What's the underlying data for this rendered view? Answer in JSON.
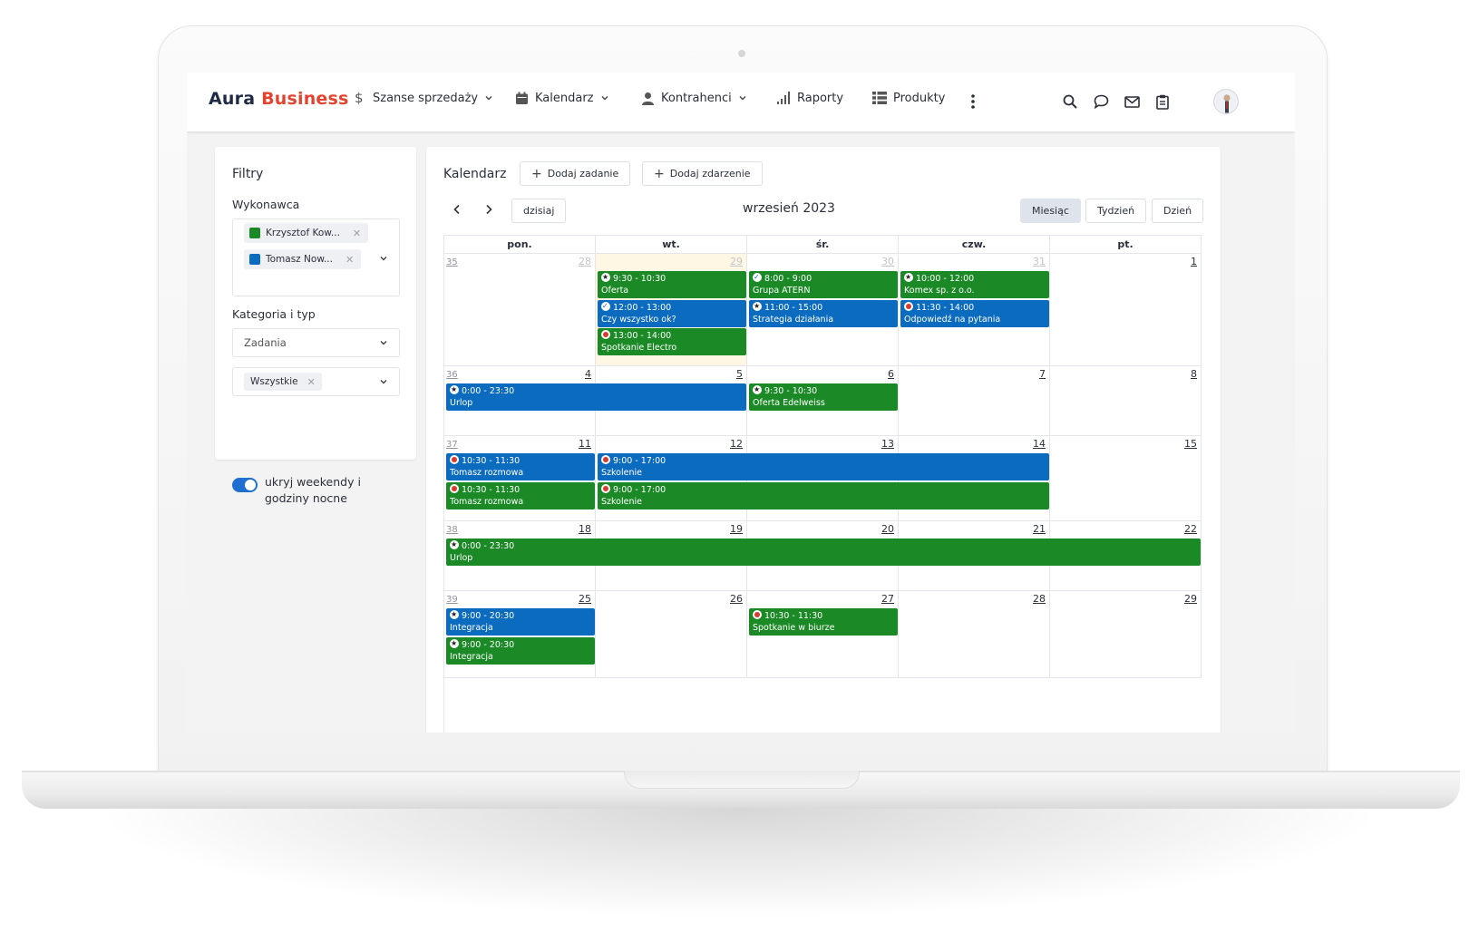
{
  "brand": {
    "part1": "Aura",
    "part2": "Business"
  },
  "nav": [
    {
      "label": "Szanse sprzedaży",
      "icon": "dollar-icon",
      "dropdown": true
    },
    {
      "label": "Kalendarz",
      "icon": "calendar-icon",
      "dropdown": true
    },
    {
      "label": "Kontrahenci",
      "icon": "user-icon",
      "dropdown": true
    },
    {
      "label": "Raporty",
      "icon": "bar-chart-icon",
      "dropdown": false
    },
    {
      "label": "Produkty",
      "icon": "grid-list-icon",
      "dropdown": false
    }
  ],
  "header_icons": [
    "more-vertical-icon",
    "search-icon",
    "chat-icon",
    "mail-icon",
    "clipboard-icon",
    "avatar"
  ],
  "filters": {
    "title": "Filtry",
    "assignee_label": "Wykonawca",
    "assignees": [
      {
        "name": "Krzysztof Kow...",
        "color": "#1b8a26"
      },
      {
        "name": "Tomasz Now...",
        "color": "#0b6bbf"
      }
    ],
    "category_label": "Kategoria i typ",
    "category_value": "Zadania",
    "type_chip": "Wszystkie",
    "toggle_label": "ukryj weekendy i godziny nocne",
    "toggle_on": true
  },
  "calendar": {
    "title": "Kalendarz",
    "add_task": "Dodaj zadanie",
    "add_event": "Dodaj zdarzenie",
    "today": "dzisiaj",
    "month": "wrzesień 2023",
    "views": [
      "Miesiąc",
      "Tydzień",
      "Dzień"
    ],
    "active_view": "Miesiąc",
    "weekdays": [
      "pon.",
      "wt.",
      "śr.",
      "czw.",
      "pt."
    ],
    "weeks": [
      {
        "week": "35",
        "days": [
          "28",
          "29",
          "30",
          "31",
          "1"
        ],
        "muted": [
          true,
          true,
          true,
          true,
          false
        ],
        "today_index": 1
      },
      {
        "week": "36",
        "days": [
          "4",
          "5",
          "6",
          "7",
          "8"
        ],
        "muted": [
          false,
          false,
          false,
          false,
          false
        ]
      },
      {
        "week": "37",
        "days": [
          "11",
          "12",
          "13",
          "14",
          "15"
        ],
        "muted": [
          false,
          false,
          false,
          false,
          false
        ]
      },
      {
        "week": "38",
        "days": [
          "18",
          "19",
          "20",
          "21",
          "22"
        ],
        "muted": [
          false,
          false,
          false,
          false,
          false
        ]
      },
      {
        "week": "39",
        "days": [
          "25",
          "26",
          "27",
          "28",
          "29"
        ],
        "muted": [
          false,
          false,
          false,
          false,
          false
        ]
      }
    ],
    "events": [
      {
        "week": 0,
        "col": 1,
        "span": 1,
        "slot": 0,
        "color": "green",
        "icon": "star",
        "time": "9:30 - 10:30",
        "title": "Oferta"
      },
      {
        "week": 0,
        "col": 1,
        "span": 1,
        "slot": 1,
        "color": "blue",
        "icon": "check",
        "time": "12:00 - 13:00",
        "title": "Czy wszystko ok?"
      },
      {
        "week": 0,
        "col": 1,
        "span": 1,
        "slot": 2,
        "color": "green",
        "icon": "red",
        "time": "13:00 - 14:00",
        "title": "Spotkanie Electro"
      },
      {
        "week": 0,
        "col": 2,
        "span": 1,
        "slot": 0,
        "color": "green",
        "icon": "check",
        "time": "8:00 - 9:00",
        "title": "Grupa ATERN"
      },
      {
        "week": 0,
        "col": 2,
        "span": 1,
        "slot": 1,
        "color": "blue",
        "icon": "star",
        "time": "11:00 - 15:00",
        "title": "Strategia działania"
      },
      {
        "week": 0,
        "col": 3,
        "span": 1,
        "slot": 0,
        "color": "green",
        "icon": "star",
        "time": "10:00 - 12:00",
        "title": "Komex sp. z o.o."
      },
      {
        "week": 0,
        "col": 3,
        "span": 1,
        "slot": 1,
        "color": "blue",
        "icon": "red",
        "time": "11:30 - 14:00",
        "title": "Odpowiedź na pytania"
      },
      {
        "week": 1,
        "col": 0,
        "span": 2,
        "slot": 0,
        "color": "blue",
        "icon": "star",
        "time": "0:00 - 23:30",
        "title": "Urlop"
      },
      {
        "week": 1,
        "col": 2,
        "span": 1,
        "slot": 0,
        "color": "green",
        "icon": "star",
        "time": "9:30 - 10:30",
        "title": "Oferta Edelweiss"
      },
      {
        "week": 2,
        "col": 0,
        "span": 1,
        "slot": 0,
        "color": "blue",
        "icon": "red",
        "time": "10:30 - 11:30",
        "title": "Tomasz rozmowa"
      },
      {
        "week": 2,
        "col": 0,
        "span": 1,
        "slot": 1,
        "color": "green",
        "icon": "red",
        "time": "10:30 - 11:30",
        "title": "Tomasz rozmowa"
      },
      {
        "week": 2,
        "col": 1,
        "span": 3,
        "slot": 0,
        "color": "blue",
        "icon": "red",
        "time": "9:00 - 17:00",
        "title": "Szkolenie"
      },
      {
        "week": 2,
        "col": 1,
        "span": 3,
        "slot": 1,
        "color": "green",
        "icon": "red",
        "time": "9:00 - 17:00",
        "title": "Szkolenie"
      },
      {
        "week": 3,
        "col": 0,
        "span": 5,
        "slot": 0,
        "color": "green",
        "icon": "star",
        "time": "0:00 - 23:30",
        "title": "Urlop"
      },
      {
        "week": 4,
        "col": 0,
        "span": 1,
        "slot": 0,
        "color": "blue",
        "icon": "star",
        "time": "9:00 - 20:30",
        "title": "Integracja"
      },
      {
        "week": 4,
        "col": 0,
        "span": 1,
        "slot": 1,
        "color": "green",
        "icon": "star",
        "time": "9:00 - 20:30",
        "title": "Integracja"
      },
      {
        "week": 4,
        "col": 2,
        "span": 1,
        "slot": 0,
        "color": "green",
        "icon": "red",
        "time": "10:30 - 11:30",
        "title": "Spotkanie w biurze"
      }
    ],
    "colors": {
      "green": "#1b8a26",
      "blue": "#0b6bbf",
      "today_bg": "#fdf7e3",
      "brand_red": "#e3432f"
    }
  }
}
